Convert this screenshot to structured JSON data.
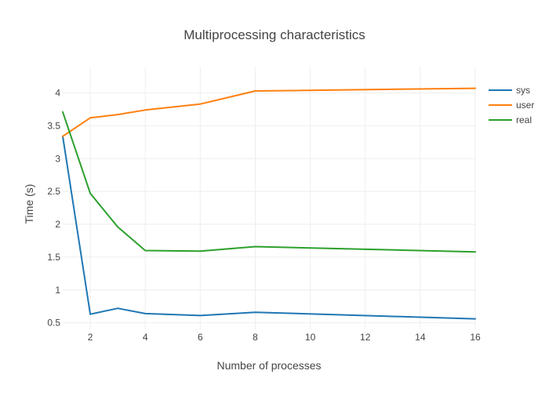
{
  "chart_data": {
    "type": "line",
    "title": "Multiprocessing characteristics",
    "xlabel": "Number of processes",
    "ylabel": "Time (s)",
    "xlim": [
      1,
      16
    ],
    "ylim": [
      0.4,
      4.4
    ],
    "xticks": [
      2,
      4,
      6,
      8,
      10,
      12,
      14,
      16
    ],
    "xtick_labels": [
      "2",
      "4",
      "6",
      "8",
      "10",
      "12",
      "14",
      "16"
    ],
    "yticks": [
      0.5,
      1,
      1.5,
      2,
      2.5,
      3,
      3.5,
      4
    ],
    "ytick_labels": [
      "0.5",
      "1",
      "1.5",
      "2",
      "2.5",
      "3",
      "3.5",
      "4"
    ],
    "grid": true,
    "legend_position": "top-right",
    "x": [
      1,
      2,
      3,
      4,
      6,
      8,
      16
    ],
    "series": [
      {
        "name": "sys",
        "color": "#1f77b4",
        "values": [
          3.34,
          0.63,
          0.72,
          0.64,
          0.61,
          0.66,
          0.56
        ]
      },
      {
        "name": "user",
        "color": "#ff7f0e",
        "values": [
          3.34,
          3.62,
          3.67,
          3.74,
          3.83,
          4.03,
          4.07
        ]
      },
      {
        "name": "real",
        "color": "#2ca02c",
        "values": [
          3.71,
          2.47,
          1.96,
          1.6,
          1.59,
          1.66,
          1.58
        ]
      }
    ]
  }
}
